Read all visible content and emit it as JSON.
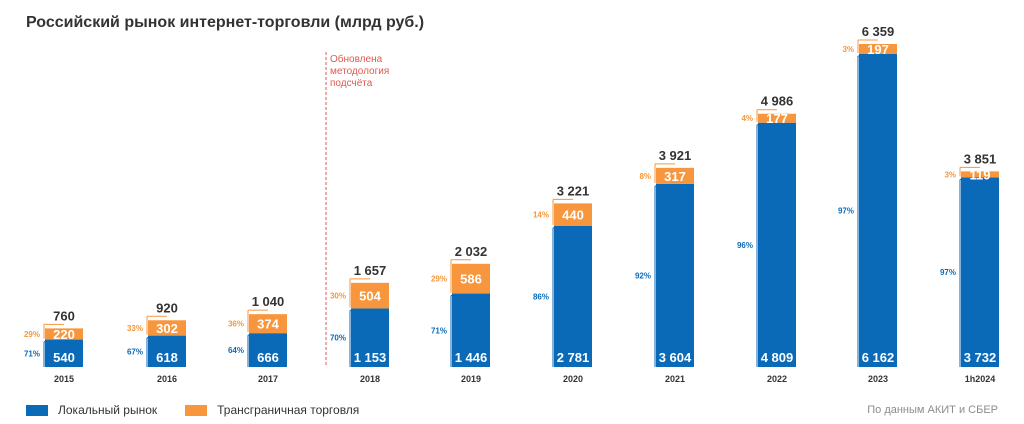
{
  "title": "Российский рынок интернет-торговли (млрд руб.)",
  "note": [
    "Обновлена",
    "методология",
    "подсчёта"
  ],
  "source": "По данным АКИТ и СБЕР",
  "colors": {
    "local": "#0a6ab8",
    "cross": "#f7963c",
    "note": "#e05a4c"
  },
  "chart_data": {
    "type": "bar",
    "stacked": true,
    "title": "Российский рынок интернет-торговли (млрд руб.)",
    "categories": [
      "2015",
      "2016",
      "2017",
      "2018",
      "2019",
      "2020",
      "2021",
      "2022",
      "2023",
      "1h2024"
    ],
    "series": [
      {
        "name": "Локальный рынок",
        "values": [
          540,
          618,
          666,
          1153,
          1446,
          2781,
          3604,
          4809,
          6162,
          3732
        ],
        "value_labels": [
          "540",
          "618",
          "666",
          "1 153",
          "1 446",
          "2 781",
          "3 604",
          "4 809",
          "6 162",
          "3 732"
        ],
        "shares": [
          "71%",
          "67%",
          "64%",
          "70%",
          "71%",
          "86%",
          "92%",
          "96%",
          "97%",
          "97%"
        ]
      },
      {
        "name": "Трансграничная торговля",
        "values": [
          220,
          302,
          374,
          504,
          586,
          440,
          317,
          177,
          197,
          119
        ],
        "value_labels": [
          "220",
          "302",
          "374",
          "504",
          "586",
          "440",
          "317",
          "177",
          "197",
          "119"
        ],
        "shares": [
          "29%",
          "33%",
          "36%",
          "30%",
          "29%",
          "14%",
          "8%",
          "4%",
          "3%",
          "3%"
        ]
      }
    ],
    "totals": [
      "760",
      "920",
      "1 040",
      "1 657",
      "2 032",
      "3 221",
      "3 921",
      "4 986",
      "6 359",
      "3 851"
    ],
    "annotation": "Обновлена методология подсчёта",
    "ylim": [
      0,
      6359
    ],
    "legend": "bottom-left"
  }
}
